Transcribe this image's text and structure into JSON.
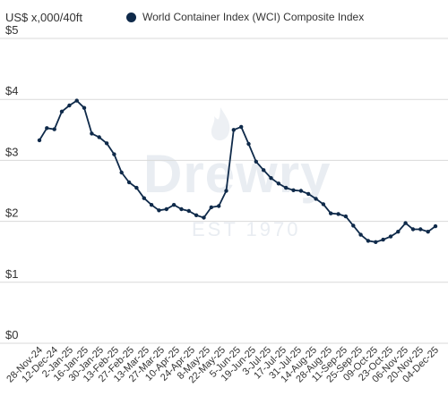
{
  "header": {
    "unit_label": "US$ x,000/40ft",
    "legend_label": "World Container Index (WCI) Composite Index",
    "legend_icon": "legend-dot-icon"
  },
  "watermark": {
    "brand": "Drewry",
    "tagline": "EST 1970"
  },
  "colors": {
    "series": "#0f2a4a",
    "grid": "#d9d9d9",
    "text": "#333333",
    "watermark": "#e9edf2"
  },
  "chart_data": {
    "type": "line",
    "title": "",
    "ylabel": "US$ x,000/40ft",
    "xlabel": "",
    "ylim": [
      0,
      5
    ],
    "yticks": [
      "$0",
      "$1",
      "$2",
      "$3",
      "$4",
      "$5"
    ],
    "ytick_values": [
      0,
      1,
      2,
      3,
      4,
      5
    ],
    "xtick_labels": [
      "28-Nov-24",
      "12-Dec-24",
      "2-Jan-25",
      "16-Jan-25",
      "30-Jan-25",
      "13-Feb-25",
      "27-Feb-25",
      "13-Mar-25",
      "27-Mar-25",
      "10-Apr-25",
      "24-Apr-25",
      "8-May-25",
      "22-May-25",
      "5-Jun-25",
      "19-Jun-25",
      "3-Jul-25",
      "17-Jul-25",
      "31-Jul-25",
      "14-Aug-25",
      "28-Aug-25",
      "11-Sep-25",
      "25-Sep-25",
      "09-Oct-25",
      "23-Oct-25",
      "06-Nov-25",
      "20-Nov-25",
      "04-Dec-25"
    ],
    "grid": true,
    "legend": "top",
    "series": [
      {
        "name": "World Container Index (WCI) Composite Index",
        "values": [
          3.33,
          3.53,
          3.51,
          3.8,
          3.9,
          3.98,
          3.86,
          3.44,
          3.38,
          3.28,
          3.1,
          2.8,
          2.64,
          2.55,
          2.38,
          2.27,
          2.18,
          2.2,
          2.27,
          2.2,
          2.17,
          2.1,
          2.06,
          2.23,
          2.25,
          2.5,
          3.5,
          3.55,
          3.27,
          2.98,
          2.84,
          2.71,
          2.62,
          2.55,
          2.51,
          2.5,
          2.45,
          2.37,
          2.28,
          2.13,
          2.12,
          2.08,
          1.93,
          1.78,
          1.68,
          1.66,
          1.7,
          1.75,
          1.83,
          1.97,
          1.87,
          1.87,
          1.83,
          1.92
        ]
      }
    ]
  }
}
